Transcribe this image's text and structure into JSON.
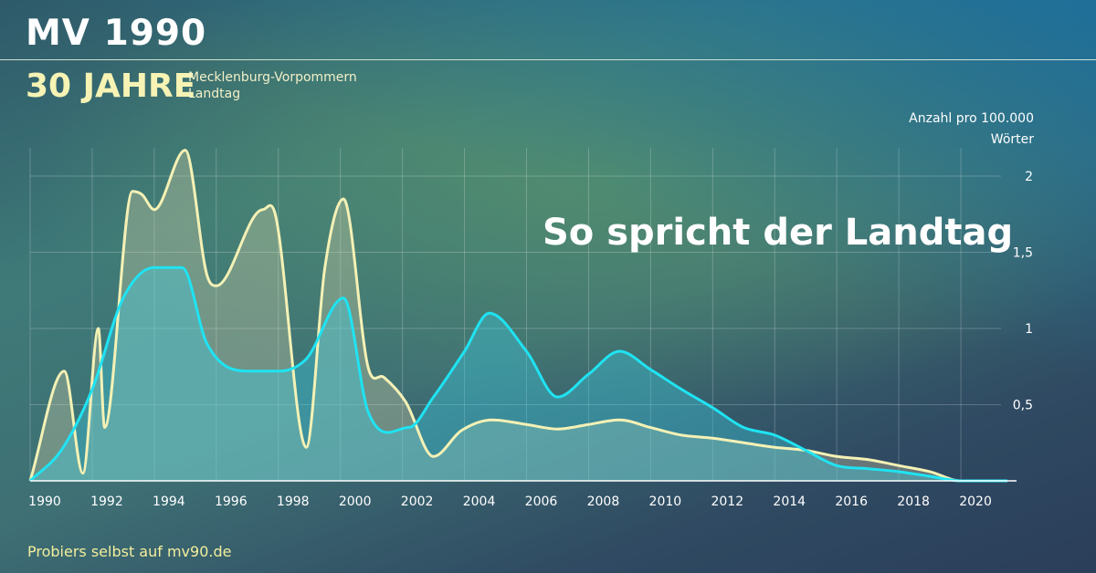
{
  "header": {
    "title": "MV 1990",
    "subtitle": "30 JAHRE",
    "org_line1": "Mecklenburg-Vorpommern",
    "org_line2": "Landtag"
  },
  "unit_label": {
    "line1": "Anzahl pro 100.000",
    "line2": "Wörter"
  },
  "headline": "So spricht der Landtag",
  "footer": "Probiers selbst auf mv90.de",
  "colors": {
    "series_yellow": "#f4f1b5",
    "series_cyan": "#1fe3f2",
    "axis": "#ffffff",
    "grid": "rgba(255,255,255,0.22)"
  },
  "chart_data": {
    "type": "area",
    "xlim": [
      1990,
      2021.5
    ],
    "ylim": [
      0,
      2.2
    ],
    "x_ticks": [
      1990,
      1992,
      1994,
      1996,
      1998,
      2000,
      2002,
      2004,
      2006,
      2008,
      2010,
      2012,
      2014,
      2016,
      2018,
      2020
    ],
    "x_tick_labels": [
      "1990",
      "1992",
      "1994",
      "1996",
      "1998",
      "2000",
      "2002",
      "2004",
      "2006",
      "2008",
      "2010",
      "2012",
      "2014",
      "2016",
      "2018",
      "2020"
    ],
    "y_ticks": [
      0.5,
      1,
      1.5,
      2
    ],
    "y_tick_labels": [
      "0,5",
      "1",
      "1,5",
      "2"
    ],
    "grid": true,
    "series": [
      {
        "color": "#f4f1b5",
        "x": [
          1990,
          1991.1,
          1991.7,
          1992.2,
          1992.4,
          1993.3,
          1993.6,
          1994,
          1995,
          1995.7,
          1996,
          1997.5,
          1997.9,
          1998.9,
          1999.5,
          2000.1,
          2000.9,
          2001.4,
          2002.1,
          2003,
          2003.9,
          2004.9,
          2006,
          2007,
          2008,
          2009,
          2010,
          2011,
          2012,
          2013,
          2014,
          2015,
          2016,
          2017,
          2018,
          2019,
          2020,
          2021.5
        ],
        "y": [
          0,
          0.72,
          0.05,
          1,
          0.35,
          1.9,
          1.88,
          1.78,
          2.17,
          1.35,
          1.28,
          1.78,
          1.75,
          0.22,
          1.4,
          1.85,
          0.74,
          0.68,
          0.52,
          0.16,
          0.33,
          0.4,
          0.37,
          0.34,
          0.37,
          0.4,
          0.35,
          0.3,
          0.28,
          0.25,
          0.22,
          0.2,
          0.16,
          0.14,
          0.1,
          0.06,
          0.0,
          0.0
        ]
      },
      {
        "color": "#1fe3f2",
        "x": [
          1990,
          1991,
          1992,
          1993,
          1994,
          1994.9,
          1995.7,
          1997,
          1998,
          1998.9,
          2000.1,
          2000.9,
          2002.2,
          2003,
          2004,
          2004.8,
          2006,
          2007,
          2008,
          2009,
          2010,
          2011,
          2012,
          2013,
          2014,
          2015,
          2016,
          2017,
          2018,
          2019,
          2020,
          2021.5
        ],
        "y": [
          0,
          0.2,
          0.6,
          1.2,
          1.4,
          1.4,
          0.9,
          0.72,
          0.72,
          0.8,
          1.2,
          0.45,
          0.35,
          0.55,
          0.85,
          1.1,
          0.85,
          0.55,
          0.7,
          0.85,
          0.73,
          0.6,
          0.48,
          0.35,
          0.3,
          0.2,
          0.1,
          0.08,
          0.06,
          0.03,
          0.0,
          0.0
        ]
      }
    ]
  }
}
